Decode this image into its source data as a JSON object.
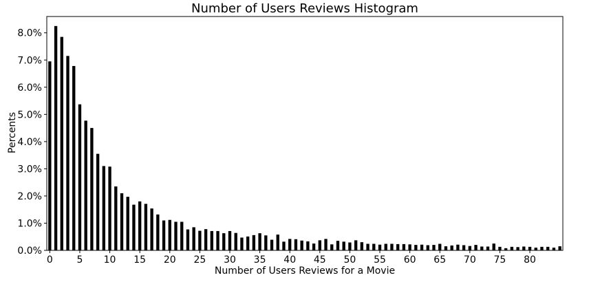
{
  "chart_data": {
    "type": "bar",
    "title": "Number of Users Reviews Histogram",
    "xlabel": "Number of Users Reviews for a Movie",
    "ylabel": "Percents",
    "x": [
      0,
      1,
      2,
      3,
      4,
      5,
      6,
      7,
      8,
      9,
      10,
      11,
      12,
      13,
      14,
      15,
      16,
      17,
      18,
      19,
      20,
      21,
      22,
      23,
      24,
      25,
      26,
      27,
      28,
      29,
      30,
      31,
      32,
      33,
      34,
      35,
      36,
      37,
      38,
      39,
      40,
      41,
      42,
      43,
      44,
      45,
      46,
      47,
      48,
      49,
      50,
      51,
      52,
      53,
      54,
      55,
      56,
      57,
      58,
      59,
      60,
      61,
      62,
      63,
      64,
      65,
      66,
      67,
      68,
      69,
      70,
      71,
      72,
      73,
      74,
      75,
      76,
      77,
      78,
      79,
      80,
      81,
      82,
      83,
      84,
      85
    ],
    "values": [
      6.95,
      8.25,
      7.85,
      7.15,
      6.78,
      5.37,
      4.77,
      4.5,
      3.55,
      3.1,
      3.08,
      2.35,
      2.1,
      1.97,
      1.68,
      1.8,
      1.71,
      1.54,
      1.32,
      1.1,
      1.12,
      1.05,
      1.05,
      0.77,
      0.85,
      0.72,
      0.78,
      0.71,
      0.71,
      0.63,
      0.71,
      0.64,
      0.47,
      0.51,
      0.56,
      0.63,
      0.55,
      0.39,
      0.58,
      0.32,
      0.42,
      0.41,
      0.36,
      0.33,
      0.25,
      0.37,
      0.42,
      0.22,
      0.35,
      0.32,
      0.29,
      0.37,
      0.3,
      0.24,
      0.24,
      0.21,
      0.24,
      0.24,
      0.23,
      0.23,
      0.22,
      0.2,
      0.21,
      0.19,
      0.2,
      0.24,
      0.15,
      0.18,
      0.21,
      0.19,
      0.16,
      0.2,
      0.14,
      0.14,
      0.25,
      0.13,
      0.08,
      0.13,
      0.12,
      0.14,
      0.13,
      0.1,
      0.13,
      0.13,
      0.1,
      0.15
    ],
    "xticks": [
      0,
      5,
      10,
      15,
      20,
      25,
      30,
      35,
      40,
      45,
      50,
      55,
      60,
      65,
      70,
      75,
      80
    ],
    "yticks": [
      0,
      1,
      2,
      3,
      4,
      5,
      6,
      7,
      8
    ],
    "ytick_labels": [
      "0.0%",
      "1.0%",
      "2.0%",
      "3.0%",
      "4.0%",
      "5.0%",
      "6.0%",
      "7.0%",
      "8.0%"
    ],
    "xlim": [
      -0.5,
      85.5
    ],
    "ylim": [
      0,
      8.6
    ],
    "bar_width": 0.5,
    "grid": false,
    "bar_color": "#000000"
  }
}
